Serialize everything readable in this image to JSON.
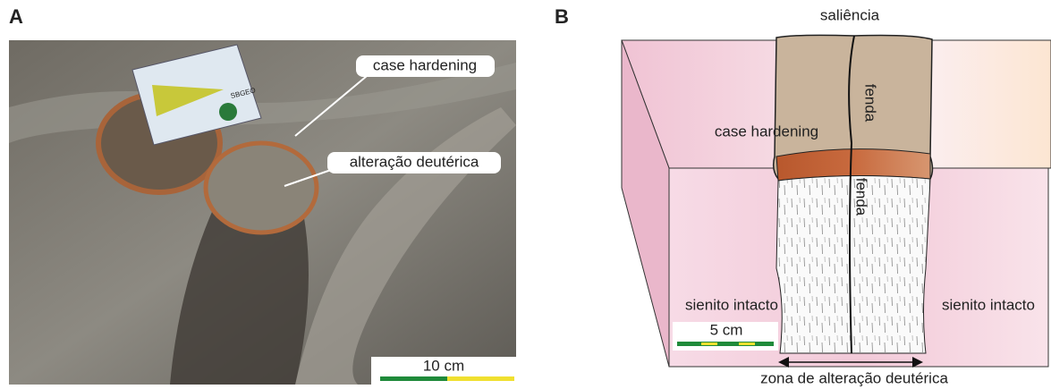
{
  "panel_a": {
    "label": "A",
    "card_text": "SBGEO",
    "callouts": [
      "case hardening",
      "alteração deutérica"
    ],
    "scale_bar": "10 cm"
  },
  "panel_b": {
    "label": "B",
    "top": "saliência",
    "crack_upper": "fenda",
    "crack_lower": "fenda",
    "hardening": "case hardening",
    "rock_left": "sienito intacto",
    "rock_right": "sienito intacto",
    "scale_bar": "5 cm",
    "zone": "zona de alteração deutérica"
  }
}
